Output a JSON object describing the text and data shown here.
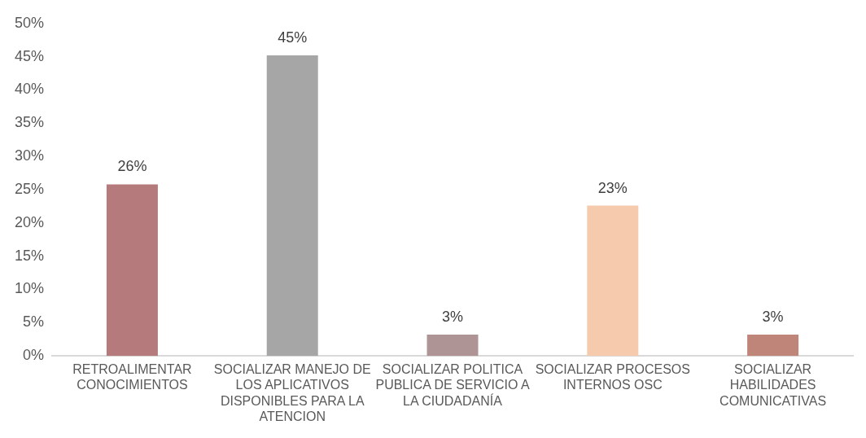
{
  "chart_data": {
    "type": "bar",
    "categories": [
      "RETROALIMENTAR CONOCIMIENTOS",
      "SOCIALIZAR MANEJO DE LOS APLICATIVOS DISPONIBLES PARA LA ATENCION",
      "SOCIALIZAR POLITICA PUBLICA DE SERVICIO A LA CIUDADANÍA",
      "SOCIALIZAR PROCESOS INTERNOS OSC",
      "SOCIALIZAR HABILIDADES COMUNICATIVAS"
    ],
    "values": [
      25.8,
      45.2,
      3.2,
      22.6,
      3.2
    ],
    "value_labels": [
      "26%",
      "45%",
      "3%",
      "23%",
      "3%"
    ],
    "colors": [
      "#b57a7c",
      "#a6a6a6",
      "#ae9494",
      "#f6caac",
      "#bf8579"
    ],
    "ylim": [
      0,
      50
    ],
    "yticks": [
      {
        "value": 0,
        "label": "0%"
      },
      {
        "value": 5,
        "label": "5%"
      },
      {
        "value": 10,
        "label": "10%"
      },
      {
        "value": 15,
        "label": "15%"
      },
      {
        "value": 20,
        "label": "20%"
      },
      {
        "value": 25,
        "label": "25%"
      },
      {
        "value": 30,
        "label": "30%"
      },
      {
        "value": 35,
        "label": "35%"
      },
      {
        "value": 40,
        "label": "40%"
      },
      {
        "value": 45,
        "label": "45%"
      },
      {
        "value": 50,
        "label": "50%"
      }
    ],
    "grid": false,
    "legend": false
  }
}
